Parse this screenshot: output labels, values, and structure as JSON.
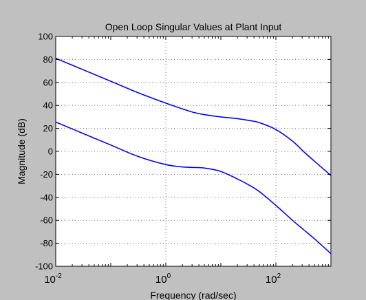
{
  "chart_data": {
    "type": "line",
    "title": "Open Loop  Singular Values at Plant Input",
    "xlabel": "Frequency (rad/sec)",
    "ylabel": "Magnitude (dB)",
    "xscale": "log",
    "xlim": [
      0.01,
      1000
    ],
    "ylim": [
      -100,
      100
    ],
    "grid": true,
    "x_ticks": [
      {
        "value": 0.01,
        "base": "10",
        "exp": "-2"
      },
      {
        "value": 1,
        "base": "10",
        "exp": "0"
      },
      {
        "value": 100,
        "base": "10",
        "exp": "2"
      }
    ],
    "y_ticks": [
      100,
      80,
      60,
      40,
      20,
      0,
      -20,
      -40,
      -60,
      -80,
      -100
    ],
    "colors": {
      "series": "#0000ff",
      "background": "#c0c0c0",
      "plot": "#ffffff"
    },
    "series": [
      {
        "x": [
          0.01,
          0.0316,
          0.1,
          0.316,
          1,
          2,
          3.16,
          5,
          10,
          20,
          31.6,
          50,
          100,
          200,
          316,
          500,
          1000
        ],
        "y": [
          81,
          71,
          61,
          51,
          42,
          37,
          34,
          32,
          30,
          28.5,
          27,
          25,
          19,
          9,
          0,
          -8.5,
          -21
        ]
      },
      {
        "x": [
          0.01,
          0.0316,
          0.1,
          0.316,
          1,
          2,
          3.16,
          5,
          10,
          20,
          31.6,
          50,
          100,
          200,
          316,
          500,
          1000
        ],
        "y": [
          25.5,
          15.5,
          5.5,
          -4.5,
          -11.5,
          -13.5,
          -14,
          -14.5,
          -17.5,
          -24,
          -29,
          -35,
          -47,
          -60,
          -68,
          -76,
          -89
        ]
      }
    ]
  }
}
